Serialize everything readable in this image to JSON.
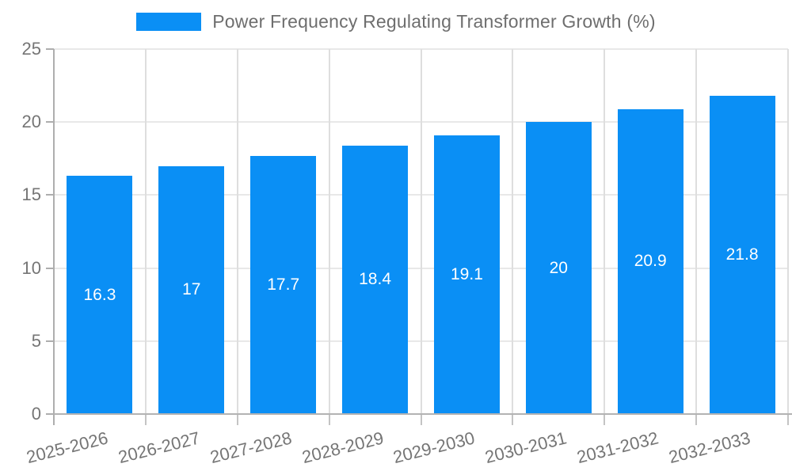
{
  "legend": {
    "swatch_color": "#0a8ff5",
    "label": "Power Frequency Regulating Transformer Growth (%)"
  },
  "chart_data": {
    "type": "bar",
    "title": "Power Frequency Regulating Transformer Growth (%)",
    "categories": [
      "2025-2026",
      "2026-2027",
      "2027-2028",
      "2028-2029",
      "2029-2030",
      "2030-2031",
      "2031-2032",
      "2032-2033"
    ],
    "values": [
      16.3,
      17,
      17.7,
      18.4,
      19.1,
      20,
      20.9,
      21.8
    ],
    "value_labels": [
      "16.3",
      "17",
      "17.7",
      "18.4",
      "19.1",
      "20",
      "20.9",
      "21.8"
    ],
    "xlabel": "",
    "ylabel": "",
    "ylim": [
      0,
      25
    ],
    "yticks": [
      0,
      5,
      10,
      15,
      20,
      25
    ],
    "ytick_labels": [
      "0",
      "5",
      "10",
      "15",
      "20",
      "25"
    ],
    "grid": true,
    "legend_position": "top-center",
    "colors": {
      "bar": "#0a8ff5",
      "value_label": "#ffffff",
      "axis_text": "#757575",
      "grid_line_h": "#e8e8e8",
      "grid_line_v": "#dedede",
      "axis_line": "#b3b3b3"
    }
  }
}
